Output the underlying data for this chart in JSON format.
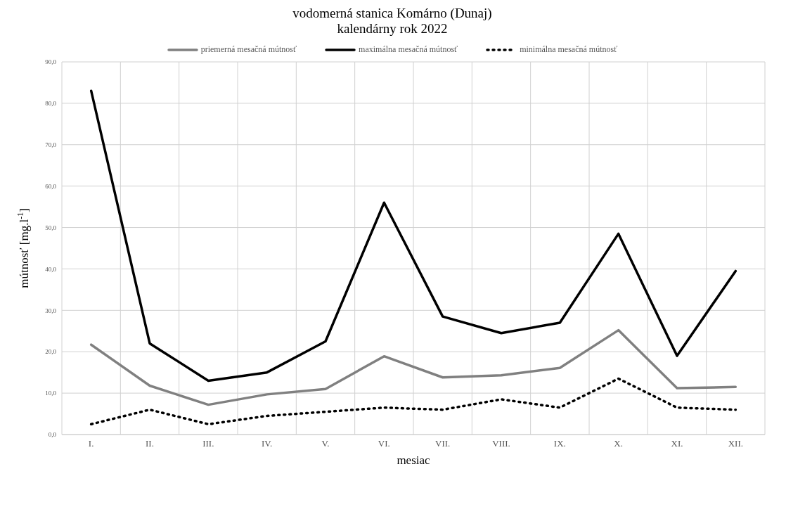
{
  "chart_data": {
    "type": "line",
    "title": "vodomerná stanica Komárno (Dunaj)",
    "subtitle": "kalendárny rok 2022",
    "xlabel": "mesiac",
    "ylabel": "mútnosť [mg.l$^{-1}$]",
    "categories": [
      "I.",
      "II.",
      "III.",
      "IV.",
      "V.",
      "VI.",
      "VII.",
      "VIII.",
      "IX.",
      "X.",
      "XI.",
      "XII."
    ],
    "series": [
      {
        "name": "priemerná mesačná mútnosť",
        "color": "#808080",
        "line_style": "solid",
        "values": [
          21.7,
          11.8,
          7.2,
          9.7,
          11.0,
          18.9,
          13.8,
          14.3,
          16.1,
          25.2,
          11.2,
          11.5
        ]
      },
      {
        "name": "maximálna mesačná mútnosť",
        "color": "#000000",
        "line_style": "solid",
        "values": [
          83.0,
          22.0,
          13.0,
          15.0,
          22.5,
          56.0,
          28.5,
          24.5,
          27.0,
          48.5,
          19.0,
          39.5
        ]
      },
      {
        "name": "minimálna mesačná mútnosť",
        "color": "#000000",
        "line_style": "dotted",
        "values": [
          2.5,
          6.0,
          2.5,
          4.5,
          5.5,
          6.5,
          6.0,
          8.5,
          6.5,
          13.5,
          6.5,
          6.0
        ]
      }
    ],
    "ylim": [
      0,
      90
    ],
    "yticks": [
      {
        "value": 0,
        "label": "0,0"
      },
      {
        "value": 10,
        "label": "10,0"
      },
      {
        "value": 20,
        "label": "20,0"
      },
      {
        "value": 30,
        "label": "30,0"
      },
      {
        "value": 40,
        "label": "40,0"
      },
      {
        "value": 50,
        "label": "50,0"
      },
      {
        "value": 60,
        "label": "60,0"
      },
      {
        "value": 70,
        "label": "70,0"
      },
      {
        "value": 80,
        "label": "80,0"
      },
      {
        "value": 90,
        "label": "90,0"
      }
    ],
    "grid": true,
    "legend": "top",
    "marker": "none"
  }
}
